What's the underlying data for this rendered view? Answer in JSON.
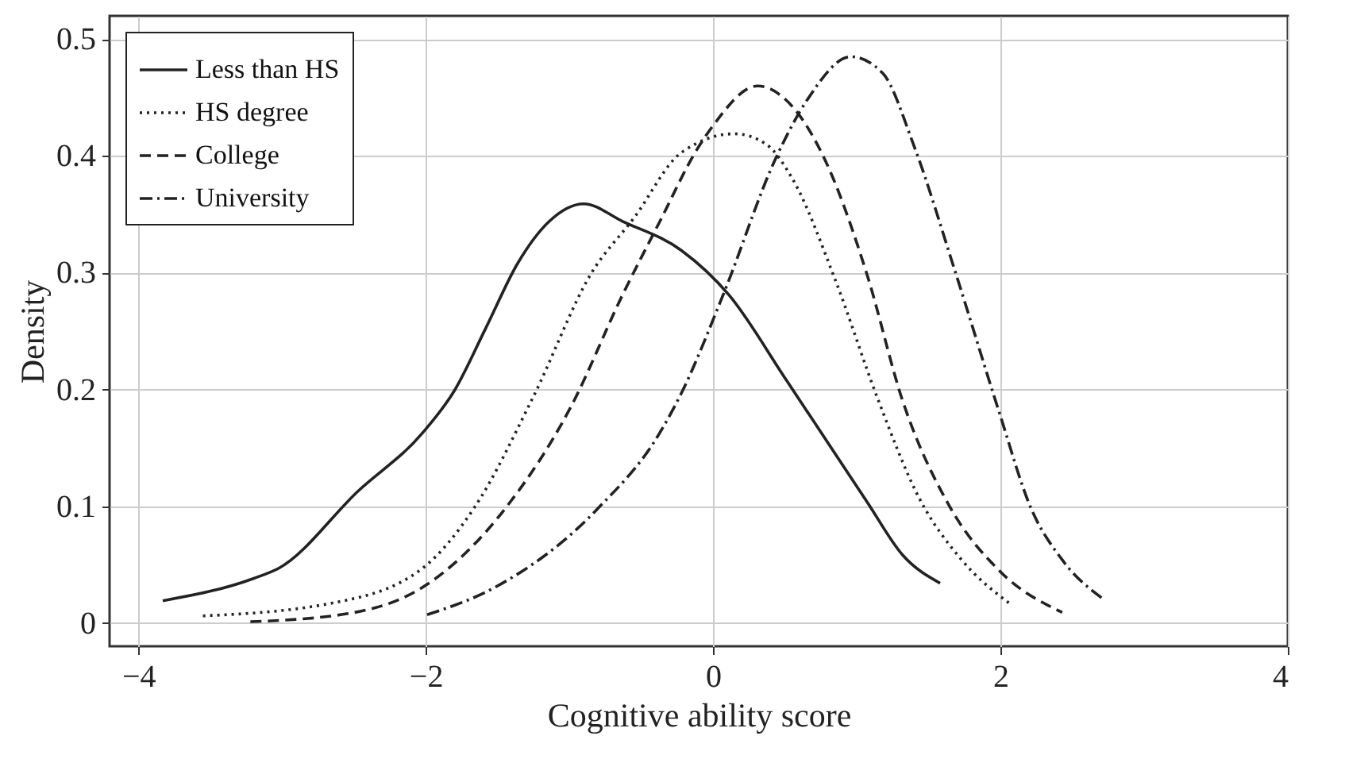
{
  "chart_data": {
    "type": "line",
    "xlabel": "Cognitive ability score",
    "ylabel": "Density",
    "xlim": [
      -4.2,
      4
    ],
    "xticks": [
      -4,
      -2,
      0,
      2,
      4
    ],
    "ylim": [
      -0.02,
      0.52
    ],
    "yticks": [
      0,
      0.1,
      0.2,
      0.3,
      0.4,
      0.5
    ],
    "grid": true,
    "legend": "top left",
    "series": [
      {
        "name": "Less than HS",
        "color": "#222222",
        "line_style": "solid",
        "x": [
          -3.83,
          -3.2,
          -3.02,
          -2.47,
          -2.02,
          -1.8,
          -1.58,
          -1.36,
          -1.14,
          -0.9,
          -0.63,
          -0.22,
          0.11,
          0.51,
          1.07,
          1.32,
          1.58
        ],
        "values": [
          0.019,
          0.038,
          0.047,
          0.113,
          0.163,
          0.199,
          0.253,
          0.308,
          0.344,
          0.359,
          0.344,
          0.319,
          0.281,
          0.208,
          0.104,
          0.058,
          0.034
        ]
      },
      {
        "name": "HS degree",
        "color": "#222222",
        "line_style": "dotted",
        "x": [
          -3.55,
          -2.65,
          -2.02,
          -1.66,
          -1.25,
          -0.85,
          -0.55,
          -0.22,
          0.15,
          0.37,
          0.55,
          0.85,
          1.14,
          1.43,
          1.73,
          2.06
        ],
        "values": [
          0.006,
          0.017,
          0.047,
          0.099,
          0.194,
          0.299,
          0.347,
          0.403,
          0.419,
          0.41,
          0.381,
          0.294,
          0.194,
          0.108,
          0.054,
          0.017
        ]
      },
      {
        "name": "College",
        "color": "#222222",
        "line_style": "dashed",
        "x": [
          -3.22,
          -2.54,
          -1.99,
          -1.44,
          -0.99,
          -0.63,
          -0.37,
          -0.11,
          0.0,
          0.31,
          0.48,
          0.77,
          1.07,
          1.32,
          1.65,
          1.99,
          2.43
        ],
        "values": [
          0.001,
          0.008,
          0.033,
          0.099,
          0.185,
          0.281,
          0.344,
          0.406,
          0.426,
          0.46,
          0.451,
          0.399,
          0.299,
          0.19,
          0.099,
          0.045,
          0.009
        ]
      },
      {
        "name": "University",
        "color": "#222222",
        "line_style": "dashdot",
        "x": [
          -1.99,
          -1.51,
          -0.81,
          -0.37,
          -0.22,
          0.07,
          0.44,
          0.66,
          0.96,
          1.18,
          1.4,
          1.69,
          1.99,
          2.21,
          2.43,
          2.72
        ],
        "values": [
          0.007,
          0.031,
          0.097,
          0.163,
          0.197,
          0.281,
          0.399,
          0.449,
          0.485,
          0.471,
          0.408,
          0.299,
          0.181,
          0.099,
          0.054,
          0.02
        ]
      }
    ]
  }
}
